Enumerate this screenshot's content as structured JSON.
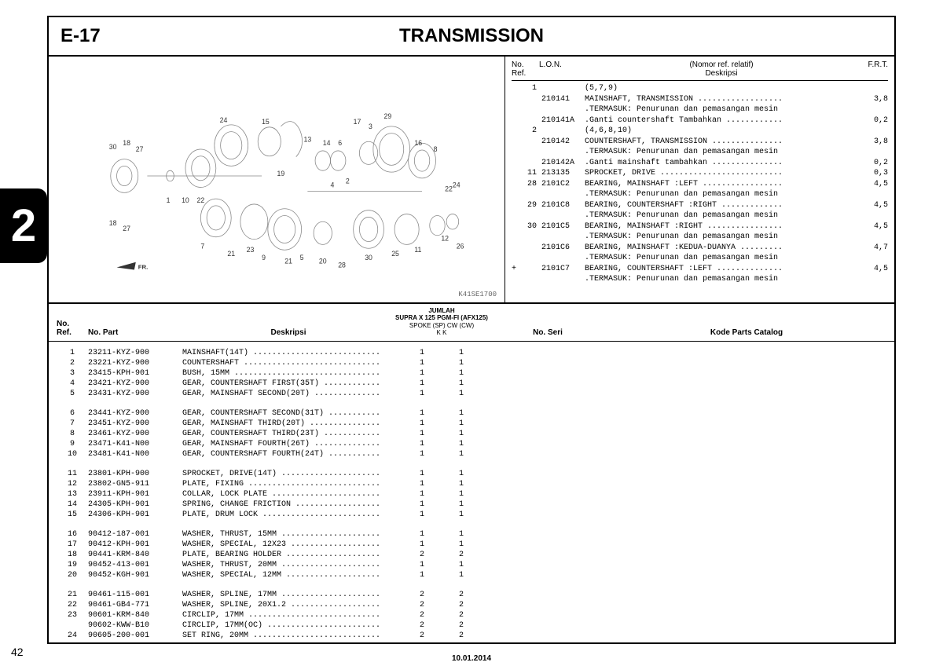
{
  "header": {
    "code": "E-17",
    "title": "TRANSMISSION"
  },
  "diagram_code": "K41SE1700",
  "ref_table": {
    "headers": {
      "no": "No.\nRef.",
      "lon": "L.O.N.",
      "nomor": "(Nomor ref. relatif)",
      "desc": "Deskripsi",
      "frt": "F.R.T."
    },
    "rows": [
      {
        "no": "1",
        "lon": "",
        "desc": "(5,7,9)",
        "frt": ""
      },
      {
        "no": "",
        "lon": "210141",
        "desc": "MAINSHAFT, TRANSMISSION ..................",
        "frt": "3,8"
      },
      {
        "no": "",
        "lon": "",
        "desc": ".TERMASUK: Penurunan dan pemasangan mesin",
        "frt": ""
      },
      {
        "no": "",
        "lon": "210141A",
        "desc": ".Ganti countershaft Tambahkan ............",
        "frt": "0,2"
      },
      {
        "no": "2",
        "lon": "",
        "desc": "(4,6,8,10)",
        "frt": ""
      },
      {
        "no": "",
        "lon": "210142",
        "desc": "COUNTERSHAFT, TRANSMISSION ...............",
        "frt": "3,8"
      },
      {
        "no": "",
        "lon": "",
        "desc": ".TERMASUK: Penurunan dan pemasangan mesin",
        "frt": ""
      },
      {
        "no": "",
        "lon": "210142A",
        "desc": ".Ganti mainshaft tambahkan ...............",
        "frt": "0,2"
      },
      {
        "no": "11",
        "lon": "213135",
        "desc": "SPROCKET, DRIVE ..........................",
        "frt": "0,3"
      },
      {
        "no": "28",
        "lon": "2101C2",
        "desc": "BEARING, MAINSHAFT :LEFT .................",
        "frt": "4,5"
      },
      {
        "no": "",
        "lon": "",
        "desc": ".TERMASUK: Penurunan dan pemasangan mesin",
        "frt": ""
      },
      {
        "no": "29",
        "lon": "2101C8",
        "desc": "BEARING, COUNTERSHAFT :RIGHT .............",
        "frt": "4,5"
      },
      {
        "no": "",
        "lon": "",
        "desc": ".TERMASUK: Penurunan dan pemasangan mesin",
        "frt": ""
      },
      {
        "no": "30",
        "lon": "2101C5",
        "desc": "BEARING, MAINSHAFT :RIGHT ................",
        "frt": "4,5"
      },
      {
        "no": "",
        "lon": "",
        "desc": ".TERMASUK: Penurunan dan pemasangan mesin",
        "frt": ""
      },
      {
        "no": "",
        "lon": "2101C6",
        "desc": "BEARING, MAINSHAFT :KEDUA-DUANYA .........",
        "frt": "4,7"
      },
      {
        "no": "",
        "lon": "",
        "desc": ".TERMASUK: Penurunan dan pemasangan mesin",
        "frt": ""
      },
      {
        "no": "+",
        "plus": true,
        "lon": "2101C7",
        "desc": "BEARING, COUNTERSHAFT :LEFT ..............",
        "frt": "4,5"
      },
      {
        "no": "",
        "lon": "",
        "desc": ".TERMASUK: Penurunan dan pemasangan mesin",
        "frt": ""
      }
    ]
  },
  "parts_header": {
    "no": "No.\nRef.",
    "part": "No. Part",
    "desc": "Deskripsi",
    "jumlah_title": "JUMLAH",
    "jumlah_sub": "SUPRA X 125 PGM-FI (AFX125)",
    "jumlah_cols": "SPOKE (SP)    CW (CW)",
    "jumlah_k": "K                  K",
    "seri": "No. Seri",
    "kode": "Kode Parts Catalog"
  },
  "parts": [
    {
      "no": "1",
      "part": "23211-KYZ-900",
      "desc": "MAINSHAFT(14T) ...........................",
      "q1": "1",
      "q2": "1"
    },
    {
      "no": "2",
      "part": "23221-KYZ-900",
      "desc": "COUNTERSHAFT .............................",
      "q1": "1",
      "q2": "1"
    },
    {
      "no": "3",
      "part": "23415-KPH-901",
      "desc": "BUSH, 15MM ...............................",
      "q1": "1",
      "q2": "1"
    },
    {
      "no": "4",
      "part": "23421-KYZ-900",
      "desc": "GEAR, COUNTERSHAFT FIRST(35T) ............",
      "q1": "1",
      "q2": "1"
    },
    {
      "no": "5",
      "part": "23431-KYZ-900",
      "desc": "GEAR, MAINSHAFT SECOND(20T) ..............",
      "q1": "1",
      "q2": "1"
    },
    {
      "gap": true,
      "no": "6",
      "part": "23441-KYZ-900",
      "desc": "GEAR, COUNTERSHAFT SECOND(31T) ...........",
      "q1": "1",
      "q2": "1"
    },
    {
      "no": "7",
      "part": "23451-KYZ-900",
      "desc": "GEAR, MAINSHAFT THIRD(20T) ...............",
      "q1": "1",
      "q2": "1"
    },
    {
      "no": "8",
      "part": "23461-KYZ-900",
      "desc": "GEAR, COUNTERSHAFT THIRD(23T) ............",
      "q1": "1",
      "q2": "1"
    },
    {
      "no": "9",
      "part": "23471-K41-N00",
      "desc": "GEAR, MAINSHAFT FOURTH(26T) ..............",
      "q1": "1",
      "q2": "1"
    },
    {
      "no": "10",
      "part": "23481-K41-N00",
      "desc": "GEAR, COUNTERSHAFT FOURTH(24T) ...........",
      "q1": "1",
      "q2": "1"
    },
    {
      "gap": true,
      "no": "11",
      "part": "23801-KPH-900",
      "desc": "SPROCKET, DRIVE(14T) .....................",
      "q1": "1",
      "q2": "1"
    },
    {
      "no": "12",
      "part": "23802-GN5-911",
      "desc": "PLATE, FIXING ............................",
      "q1": "1",
      "q2": "1"
    },
    {
      "no": "13",
      "part": "23911-KPH-901",
      "desc": "COLLAR, LOCK PLATE .......................",
      "q1": "1",
      "q2": "1"
    },
    {
      "no": "14",
      "part": "24305-KPH-901",
      "desc": "SPRING, CHANGE FRICTION ..................",
      "q1": "1",
      "q2": "1"
    },
    {
      "no": "15",
      "part": "24306-KPH-901",
      "desc": "PLATE, DRUM LOCK .........................",
      "q1": "1",
      "q2": "1"
    },
    {
      "gap": true,
      "no": "16",
      "part": "90412-187-001",
      "desc": "WASHER, THRUST, 15MM .....................",
      "q1": "1",
      "q2": "1"
    },
    {
      "no": "17",
      "part": "90412-KPH-901",
      "desc": "WASHER, SPECIAL, 12X23 ...................",
      "q1": "1",
      "q2": "1"
    },
    {
      "no": "18",
      "part": "90441-KRM-840",
      "desc": "PLATE, BEARING HOLDER ....................",
      "q1": "2",
      "q2": "2"
    },
    {
      "no": "19",
      "part": "90452-413-001",
      "desc": "WASHER, THRUST, 20MM .....................",
      "q1": "1",
      "q2": "1"
    },
    {
      "no": "20",
      "part": "90452-KGH-901",
      "desc": "WASHER, SPECIAL, 12MM ....................",
      "q1": "1",
      "q2": "1"
    },
    {
      "gap": true,
      "no": "21",
      "part": "90461-115-001",
      "desc": "WASHER, SPLINE, 17MM .....................",
      "q1": "2",
      "q2": "2"
    },
    {
      "no": "22",
      "part": "90461-GB4-771",
      "desc": "WASHER, SPLINE, 20X1.2 ...................",
      "q1": "2",
      "q2": "2"
    },
    {
      "no": "23",
      "part": "90601-KRM-840",
      "desc": "CIRCLIP, 17MM ............................",
      "q1": "2",
      "q2": "2"
    },
    {
      "no": "",
      "part": "90602-KWW-B10",
      "desc": "CIRCLIP, 17MM(OC) ........................",
      "q1": "2",
      "q2": "2"
    },
    {
      "no": "24",
      "part": "90605-200-001",
      "desc": "SET RING, 20MM ...........................",
      "q1": "2",
      "q2": "2"
    }
  ],
  "side_tab": "2",
  "page_num": "42",
  "date": "10.01.2014"
}
